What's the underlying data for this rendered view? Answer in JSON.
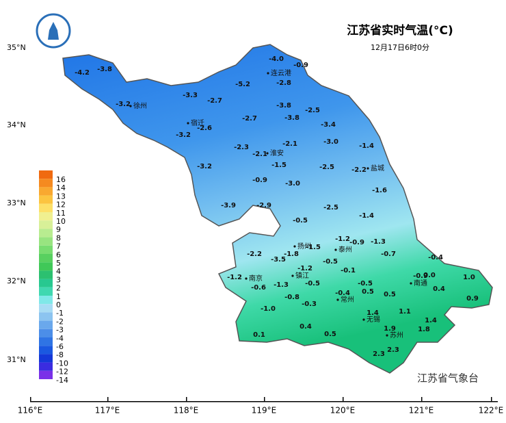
{
  "title": "江苏省实时气温(°C)",
  "subtitle": "12月17日6时0分",
  "credit": "江苏省气象台",
  "x_axis_labels": [
    "116°E",
    "117°E",
    "118°E",
    "119°E",
    "120°E",
    "121°E",
    "122°E"
  ],
  "y_axis_labels": [
    "35°N",
    "34°N",
    "33°N",
    "32°N",
    "31°N"
  ],
  "legend": {
    "labels": [
      "16",
      "14",
      "13",
      "12",
      "11",
      "10",
      "9",
      "8",
      "7",
      "6",
      "5",
      "4",
      "3",
      "2",
      "1",
      "0",
      "-1",
      "-2",
      "-3",
      "-4",
      "-6",
      "-8",
      "-10",
      "-12",
      "-14"
    ]
  },
  "cities": [
    "徐州",
    "连云港",
    "宿迁",
    "淮安",
    "盐城",
    "扬州",
    "泰州",
    "南京",
    "镇江",
    "南通",
    "常州",
    "无锡",
    "苏州"
  ],
  "stations": [
    "-4.2",
    "-3.8",
    "-3.3",
    "-2.7",
    "-5.2",
    "-4.0",
    "-0.9",
    "-2.8",
    "-3.2",
    "-3.8",
    "-2.5",
    "-2.7",
    "-3.8",
    "-3.4",
    "-2.6",
    "-3.2",
    "-2.3",
    "-2.1",
    "-2.1",
    "-3.0",
    "-1.4",
    "-3.2",
    "-1.5",
    "-2.5",
    "-2.2",
    "-0.9",
    "-3.0",
    "-1.6",
    "-3.9",
    "-2.9",
    "-2.5",
    "-1.4",
    "-0.5",
    "-1.2",
    "-0.9",
    "-1.3",
    "-2.2",
    "-3.5",
    "-1.8",
    "-1.5",
    "-0.5",
    "-0.7",
    "-0.4",
    "-1.2",
    "-0.1",
    "-1.2",
    "-0.6",
    "-1.3",
    "-0.5",
    "-0.5",
    "-0.9",
    "0.0",
    "1.0",
    "-0.4",
    "0.5",
    "0.5",
    "0.4",
    "-0.8",
    "-0.3",
    "0.9",
    "-1.0",
    "1.4",
    "1.1",
    "1.4",
    "0.4",
    "1.9",
    "1.8",
    "0.1",
    "0.5",
    "2.3",
    "2.3"
  ]
}
